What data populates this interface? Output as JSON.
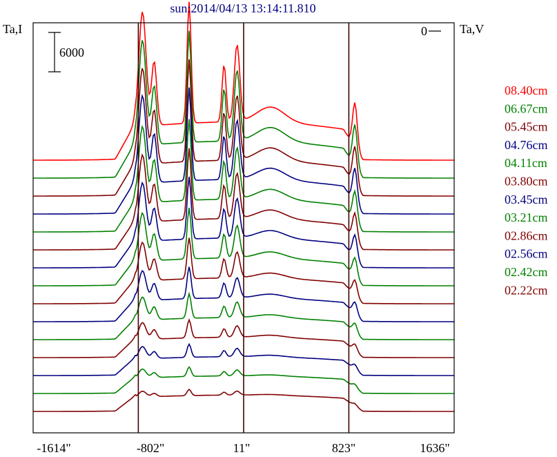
{
  "chart_data": {
    "type": "line",
    "title": "sun:2014/04/13 13:14:11.810",
    "y_left_label": "Ta,I",
    "y_right_label": "Ta,V",
    "zero_label": "0",
    "scale_bar_label": "6000",
    "x_tick_labels": [
      "-1614\"",
      "-802\"",
      "11\"",
      "823\"",
      "1636\""
    ],
    "x_range": [
      -1614,
      1636
    ],
    "vertical_markers": [
      -802,
      11,
      823
    ],
    "legend_position": "right",
    "series": [
      {
        "name": "08.40cm",
        "color": "#ff0000",
        "peak_scale": 1.0
      },
      {
        "name": "06.67cm",
        "color": "#008000",
        "peak_scale": 0.95
      },
      {
        "name": "05.45cm",
        "color": "#800000",
        "peak_scale": 0.9
      },
      {
        "name": "04.76cm",
        "color": "#000080",
        "peak_scale": 0.85
      },
      {
        "name": "04.11cm",
        "color": "#008000",
        "peak_scale": 0.78
      },
      {
        "name": "03.80cm",
        "color": "#800000",
        "peak_scale": 0.72
      },
      {
        "name": "03.45cm",
        "color": "#000080",
        "peak_scale": 0.66
      },
      {
        "name": "03.21cm",
        "color": "#008000",
        "peak_scale": 0.58
      },
      {
        "name": "02.86cm",
        "color": "#800000",
        "peak_scale": 0.5
      },
      {
        "name": "02.56cm",
        "color": "#000080",
        "peak_scale": 0.42
      },
      {
        "name": "02.42cm",
        "color": "#008000",
        "peak_scale": 0.35
      },
      {
        "name": "02.22cm",
        "color": "#800000",
        "peak_scale": 0.28
      }
    ],
    "extra_traces": [
      {
        "color": "#000080",
        "peak_scale": 0.22
      },
      {
        "color": "#008000",
        "peak_scale": 0.17
      },
      {
        "color": "#800000",
        "peak_scale": 0.12
      }
    ]
  }
}
